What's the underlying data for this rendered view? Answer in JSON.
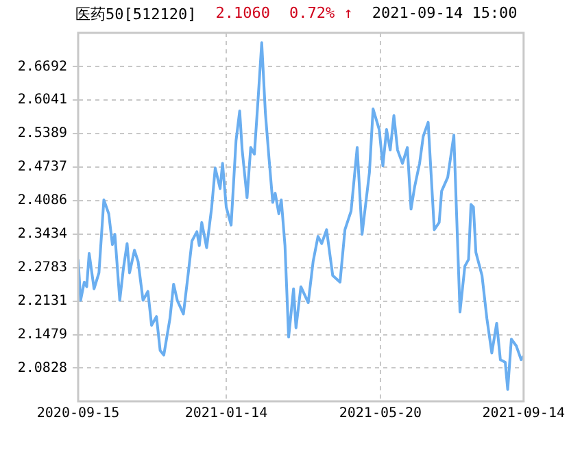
{
  "chart_data": {
    "type": "line",
    "title": "医药50[512120]",
    "annotations": [
      "2.1060",
      "0.72% ↑",
      "2021-09-14 15:00"
    ],
    "x": [
      "2020-09-15",
      "2020-09-17",
      "2020-09-20",
      "2020-09-22",
      "2020-09-24",
      "2020-09-28",
      "2020-10-02",
      "2020-10-06",
      "2020-10-10",
      "2020-10-13",
      "2020-10-15",
      "2020-10-19",
      "2020-10-22",
      "2020-10-25",
      "2020-10-27",
      "2020-10-31",
      "2020-11-03",
      "2020-11-07",
      "2020-11-11",
      "2020-11-14",
      "2020-11-18",
      "2020-11-21",
      "2020-11-24",
      "2020-11-29",
      "2020-12-02",
      "2020-12-05",
      "2020-12-10",
      "2020-12-14",
      "2020-12-17",
      "2020-12-21",
      "2020-12-23",
      "2020-12-25",
      "2020-12-29",
      "2021-01-02",
      "2021-01-05",
      "2021-01-09",
      "2021-01-11",
      "2021-01-14",
      "2021-01-18",
      "2021-01-22",
      "2021-01-25",
      "2021-01-27",
      "2021-01-31",
      "2021-02-03",
      "2021-02-06",
      "2021-02-09",
      "2021-02-12",
      "2021-02-15",
      "2021-02-18",
      "2021-02-21",
      "2021-02-23",
      "2021-02-26",
      "2021-02-28",
      "2021-03-03",
      "2021-03-06",
      "2021-03-10",
      "2021-03-12",
      "2021-03-16",
      "2021-03-22",
      "2021-03-26",
      "2021-03-30",
      "2021-04-02",
      "2021-04-06",
      "2021-04-11",
      "2021-04-17",
      "2021-04-21",
      "2021-04-26",
      "2021-05-01",
      "2021-05-05",
      "2021-05-11",
      "2021-05-14",
      "2021-05-19",
      "2021-05-22",
      "2021-05-25",
      "2021-05-28",
      "2021-05-31",
      "2021-06-03",
      "2021-06-07",
      "2021-06-11",
      "2021-06-14",
      "2021-06-17",
      "2021-06-21",
      "2021-06-24",
      "2021-06-28",
      "2021-07-03",
      "2021-07-07",
      "2021-07-09",
      "2021-07-14",
      "2021-07-19",
      "2021-07-24",
      "2021-07-28",
      "2021-07-31",
      "2021-08-02",
      "2021-08-04",
      "2021-08-06",
      "2021-08-11",
      "2021-08-15",
      "2021-08-19",
      "2021-08-23",
      "2021-08-26",
      "2021-08-30",
      "2021-09-01",
      "2021-09-04",
      "2021-09-08",
      "2021-09-12",
      "2021-09-14"
    ],
    "series": [
      {
        "color": "#6aaef0",
        "values": [
          2.2945,
          2.2145,
          2.25,
          2.241,
          2.306,
          2.237,
          2.268,
          2.41,
          2.383,
          2.323,
          2.343,
          2.2145,
          2.277,
          2.325,
          2.268,
          2.312,
          2.29,
          2.2145,
          2.232,
          2.166,
          2.183,
          2.117,
          2.108,
          2.179,
          2.246,
          2.2145,
          2.188,
          2.268,
          2.33,
          2.348,
          2.321,
          2.366,
          2.317,
          2.393,
          2.472,
          2.432,
          2.481,
          2.396,
          2.361,
          2.525,
          2.583,
          2.508,
          2.414,
          2.512,
          2.499,
          2.605,
          2.716,
          2.579,
          2.49,
          2.405,
          2.423,
          2.383,
          2.41,
          2.321,
          2.143,
          2.237,
          2.161,
          2.241,
          2.21,
          2.29,
          2.339,
          2.325,
          2.352,
          2.263,
          2.25,
          2.352,
          2.388,
          2.512,
          2.343,
          2.463,
          2.587,
          2.547,
          2.476,
          2.547,
          2.507,
          2.574,
          2.507,
          2.481,
          2.512,
          2.392,
          2.436,
          2.481,
          2.534,
          2.561,
          2.352,
          2.366,
          2.427,
          2.454,
          2.536,
          2.192,
          2.281,
          2.294,
          2.401,
          2.396,
          2.308,
          2.263,
          2.179,
          2.112,
          2.17,
          2.099,
          2.094,
          2.041,
          2.139,
          2.126,
          2.099,
          2.106
        ]
      }
    ],
    "xlim": [
      "2020-09-15",
      "2021-09-14"
    ],
    "xticks": [
      "2020-09-15",
      "2021-01-14",
      "2021-05-20",
      "2021-09-14"
    ],
    "ylim": [
      2.018,
      2.735
    ],
    "yticks": [
      2.0828,
      2.1479,
      2.2131,
      2.2783,
      2.3434,
      2.4086,
      2.4737,
      2.5389,
      2.6041,
      2.6692
    ],
    "grid": true,
    "marker": "none",
    "line_style": "solid"
  }
}
